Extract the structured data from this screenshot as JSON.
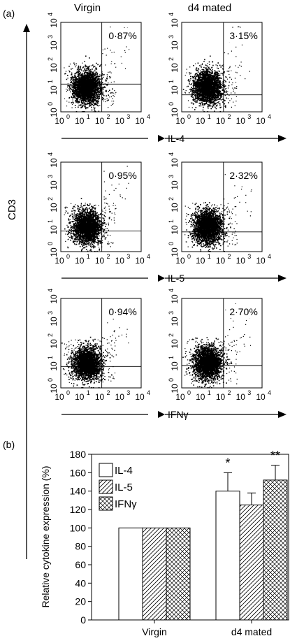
{
  "panel_a": {
    "label": "(a)",
    "column_labels": [
      "Virgin",
      "d4 mated"
    ],
    "y_axis_label": "CD3",
    "rows": [
      {
        "x_axis_label": "IL-4",
        "percents": [
          "0·87%",
          "3·15%"
        ]
      },
      {
        "x_axis_label": "IL-5",
        "percents": [
          "0·95%",
          "2·32%"
        ]
      },
      {
        "x_axis_label": "IFNγ",
        "percents": [
          "0·94%",
          "2·70%"
        ]
      }
    ],
    "tick_labels": [
      "10",
      "10",
      "10",
      "10",
      "10"
    ],
    "tick_exponents": [
      "0",
      "1",
      "2",
      "3",
      "4"
    ]
  },
  "panel_b": {
    "label": "(b)",
    "chart_data": {
      "type": "bar",
      "categories": [
        "Virgin",
        "d4 mated"
      ],
      "series": [
        {
          "name": "IL-4",
          "values": [
            100,
            140
          ],
          "errors": [
            0,
            20
          ],
          "pattern": "none"
        },
        {
          "name": "IL-5",
          "values": [
            100,
            125
          ],
          "errors": [
            0,
            13
          ],
          "pattern": "diagonal"
        },
        {
          "name": "IFNγ",
          "values": [
            100,
            152
          ],
          "errors": [
            0,
            16
          ],
          "pattern": "crosshatch"
        }
      ],
      "significance": [
        "*",
        "",
        "**"
      ],
      "ylabel": "Relative cytokine expression (%)",
      "xlabel": "",
      "ylim": [
        0,
        180
      ],
      "yticks": [
        "0",
        "20",
        "40",
        "60",
        "80",
        "100",
        "120",
        "140",
        "160",
        "180"
      ],
      "legend_position": "top-left",
      "grid": false
    }
  }
}
